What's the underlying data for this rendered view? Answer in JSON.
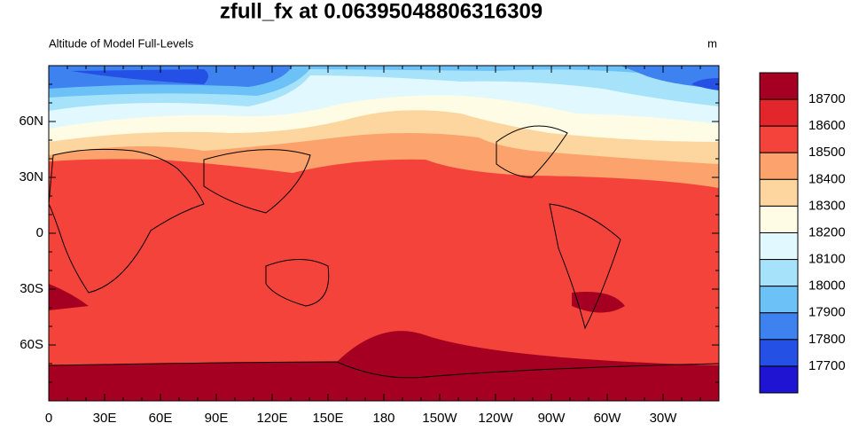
{
  "title": "zfull_fx at 0.06395048806316309",
  "subtitle_left": "Altitude of Model Full-Levels",
  "subtitle_right": "m",
  "map": {
    "x_labels": [
      "0",
      "30E",
      "60E",
      "90E",
      "120E",
      "150E",
      "180",
      "150W",
      "120W",
      "90W",
      "60W",
      "30W"
    ],
    "y_labels": [
      "60N",
      "30N",
      "0",
      "30S",
      "60S"
    ]
  },
  "colorbar": {
    "levels": [
      18700,
      18600,
      18500,
      18400,
      18300,
      18200,
      18100,
      18000,
      17900,
      17800,
      17700
    ],
    "colors": [
      "#a50021",
      "#e3262b",
      "#f4433b",
      "#fca26c",
      "#fdd59e",
      "#fffce6",
      "#e2f8ff",
      "#a6e3fb",
      "#6cc1f6",
      "#3d82ef",
      "#2550e6",
      "#1e14d2"
    ]
  }
}
